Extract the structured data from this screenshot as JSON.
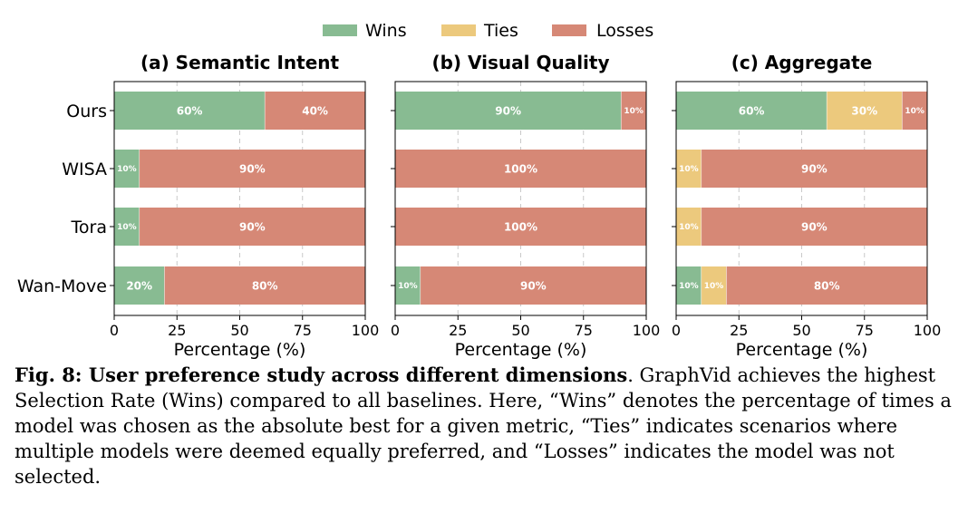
{
  "legend": {
    "items": [
      {
        "name": "Wins",
        "color": "#88bb92"
      },
      {
        "name": "Ties",
        "color": "#ecc97d"
      },
      {
        "name": "Losses",
        "color": "#d68876"
      }
    ],
    "placement": "top-center"
  },
  "chart_data": [
    {
      "type": "bar",
      "orientation": "horizontal",
      "stacked": true,
      "title": "(a) Semantic Intent",
      "xlabel": "Percentage (%)",
      "xlim": [
        0,
        100
      ],
      "xticks": [
        "0",
        "25",
        "50",
        "75",
        "100"
      ],
      "categories": [
        "Ours",
        "WISA",
        "Tora",
        "Wan-Move"
      ],
      "series": [
        {
          "name": "Wins",
          "values": [
            60,
            10,
            10,
            20
          ]
        },
        {
          "name": "Ties",
          "values": [
            0,
            0,
            0,
            0
          ]
        },
        {
          "name": "Losses",
          "values": [
            40,
            90,
            90,
            80
          ]
        }
      ],
      "data_labels": [
        [
          "60%",
          "",
          "40%"
        ],
        [
          "10%",
          "",
          "90%"
        ],
        [
          "10%",
          "",
          "90%"
        ],
        [
          "20%",
          "",
          "80%"
        ]
      ],
      "grid": "x-dashed"
    },
    {
      "type": "bar",
      "orientation": "horizontal",
      "stacked": true,
      "title": "(b) Visual Quality",
      "xlabel": "Percentage (%)",
      "xlim": [
        0,
        100
      ],
      "xticks": [
        "0",
        "25",
        "50",
        "75",
        "100"
      ],
      "categories": [
        "Ours",
        "WISA",
        "Tora",
        "Wan-Move"
      ],
      "series": [
        {
          "name": "Wins",
          "values": [
            90,
            0,
            0,
            10
          ]
        },
        {
          "name": "Ties",
          "values": [
            0,
            0,
            0,
            0
          ]
        },
        {
          "name": "Losses",
          "values": [
            10,
            100,
            100,
            90
          ]
        }
      ],
      "data_labels": [
        [
          "90%",
          "",
          "10%"
        ],
        [
          "",
          "",
          "100%"
        ],
        [
          "",
          "",
          "100%"
        ],
        [
          "10%",
          "",
          "90%"
        ]
      ],
      "grid": "x-dashed"
    },
    {
      "type": "bar",
      "orientation": "horizontal",
      "stacked": true,
      "title": "(c) Aggregate",
      "xlabel": "Percentage (%)",
      "xlim": [
        0,
        100
      ],
      "xticks": [
        "0",
        "25",
        "50",
        "75",
        "100"
      ],
      "categories": [
        "Ours",
        "WISA",
        "Tora",
        "Wan-Move"
      ],
      "series": [
        {
          "name": "Wins",
          "values": [
            60,
            0,
            0,
            10
          ]
        },
        {
          "name": "Ties",
          "values": [
            30,
            10,
            10,
            10
          ]
        },
        {
          "name": "Losses",
          "values": [
            10,
            90,
            90,
            80
          ]
        }
      ],
      "data_labels": [
        [
          "60%",
          "30%",
          "10%"
        ],
        [
          "",
          "10%",
          "90%"
        ],
        [
          "",
          "10%",
          "90%"
        ],
        [
          "10%",
          "10%",
          "80%"
        ]
      ],
      "grid": "x-dashed"
    }
  ],
  "caption": {
    "bold": "Fig. 8: User preference study across different dimensions",
    "text": ". GraphVid achieves the highest Selection Rate (Wins) compared to all baselines. Here, “Wins” denotes the percentage of times a model was chosen as the absolute best for a given metric, “Ties” indicates scenarios where multiple models were deemed equally preferred, and “Losses” indicates the model was not selected."
  }
}
